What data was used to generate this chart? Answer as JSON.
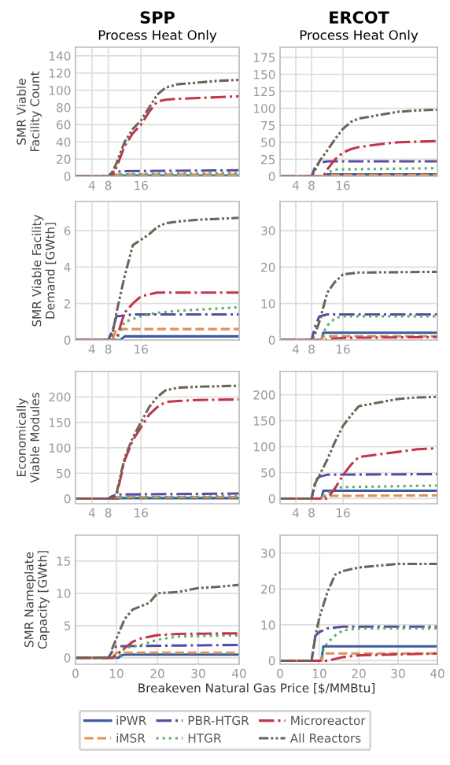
{
  "chart_data": [
    {
      "type": "line",
      "title": "SPP",
      "subtitle": "Process Heat Only",
      "ylabel": "SMR Viable\nFacility Count",
      "legend": "bottom",
      "xlim": [
        0,
        40
      ],
      "xticks": [
        4,
        8,
        16
      ],
      "ylim": [
        0,
        150
      ],
      "yticks": [
        0,
        20,
        40,
        60,
        80,
        100,
        120,
        140
      ],
      "grid": true,
      "series": [
        {
          "name": "iPWR",
          "color": "#3b5b9b",
          "line_style": "solid",
          "x": [
            0,
            10,
            11,
            40
          ],
          "values": [
            0,
            0,
            1,
            1
          ]
        },
        {
          "name": "iMSR",
          "color": "#e0905a",
          "line_style": "dashed",
          "x": [
            0,
            9,
            10,
            40
          ],
          "values": [
            0,
            0,
            2,
            2
          ]
        },
        {
          "name": "PBR-HTGR",
          "color": "#5a4c9c",
          "line_style": "dashdot",
          "x": [
            0,
            8,
            9,
            12,
            40
          ],
          "values": [
            0,
            0,
            5,
            6,
            7
          ]
        },
        {
          "name": "HTGR",
          "color": "#5aae6a",
          "line_style": "dotted",
          "x": [
            0,
            9,
            10,
            20,
            40
          ],
          "values": [
            0,
            0,
            2,
            3,
            4
          ]
        },
        {
          "name": "Microreactor",
          "color": "#c0364c",
          "line_style": "dashdot",
          "x": [
            0,
            9,
            10,
            12,
            14,
            16,
            18,
            20,
            22,
            25,
            30,
            35,
            40
          ],
          "values": [
            0,
            0,
            10,
            35,
            50,
            60,
            75,
            87,
            89,
            90,
            91,
            92,
            93
          ]
        },
        {
          "name": "All Reactors",
          "color": "#6e6455",
          "line_style": "dashdotdot",
          "x": [
            0,
            8.5,
            10,
            12,
            14,
            16,
            18,
            20,
            22,
            25,
            30,
            35,
            40
          ],
          "values": [
            0,
            0,
            15,
            40,
            55,
            65,
            80,
            95,
            103,
            107,
            109,
            111,
            112
          ]
        }
      ]
    },
    {
      "type": "line",
      "title": "ERCOT",
      "subtitle": "Process Heat Only",
      "xlim": [
        0,
        40
      ],
      "xticks": [
        4,
        8,
        16
      ],
      "ylim": [
        0,
        190
      ],
      "yticks": [
        0,
        25,
        50,
        75,
        100,
        125,
        150,
        175
      ],
      "grid": true,
      "series": [
        {
          "color": "#3b5b9b",
          "line_style": "solid",
          "x": [
            0,
            11,
            12,
            40
          ],
          "values": [
            0,
            0,
            3,
            3
          ]
        },
        {
          "color": "#e0905a",
          "line_style": "dashed",
          "x": [
            0,
            11,
            12,
            40
          ],
          "values": [
            0,
            0,
            2,
            2
          ]
        },
        {
          "color": "#5a4c9c",
          "line_style": "dashdot",
          "x": [
            0,
            8,
            9,
            10,
            12,
            40
          ],
          "values": [
            0,
            0,
            15,
            20,
            22,
            22
          ]
        },
        {
          "color": "#5aae6a",
          "line_style": "dotted",
          "x": [
            0,
            11,
            12,
            14,
            40
          ],
          "values": [
            0,
            0,
            5,
            10,
            12
          ]
        },
        {
          "color": "#c0364c",
          "line_style": "dashdot",
          "x": [
            0,
            11,
            12,
            14,
            16,
            18,
            20,
            25,
            30,
            40
          ],
          "values": [
            0,
            0,
            10,
            25,
            35,
            40,
            43,
            47,
            50,
            52
          ]
        },
        {
          "color": "#6e6455",
          "line_style": "dashdotdot",
          "x": [
            0,
            8,
            9,
            10,
            12,
            14,
            16,
            18,
            20,
            25,
            30,
            35,
            40
          ],
          "values": [
            0,
            0,
            10,
            22,
            38,
            55,
            70,
            80,
            85,
            90,
            95,
            97,
            98
          ]
        }
      ]
    },
    {
      "type": "line",
      "ylabel": "SMR Viable Facility\nDemand [GWth]",
      "xlim": [
        0,
        40
      ],
      "xticks": [
        4,
        8,
        16
      ],
      "ylim": [
        0,
        7.6
      ],
      "yticks": [
        0,
        2,
        4,
        6
      ],
      "grid": true,
      "series": [
        {
          "color": "#3b5b9b",
          "line_style": "solid",
          "x": [
            0,
            11,
            12,
            40
          ],
          "values": [
            0,
            0,
            0.2,
            0.2
          ]
        },
        {
          "color": "#e0905a",
          "line_style": "dashed",
          "x": [
            0,
            9,
            10,
            40
          ],
          "values": [
            0,
            0,
            0.6,
            0.6
          ]
        },
        {
          "color": "#5a4c9c",
          "line_style": "dashdot",
          "x": [
            0,
            8,
            9,
            10,
            14,
            40
          ],
          "values": [
            0,
            0,
            0.5,
            1.3,
            1.4,
            1.4
          ]
        },
        {
          "color": "#5aae6a",
          "line_style": "dotted",
          "x": [
            0,
            10,
            11,
            12,
            16,
            20,
            25,
            40
          ],
          "values": [
            0,
            0,
            0.5,
            1.0,
            1.3,
            1.5,
            1.6,
            1.8
          ]
        },
        {
          "color": "#c0364c",
          "line_style": "dashdot",
          "x": [
            0,
            10,
            11,
            12,
            14,
            16,
            20,
            40
          ],
          "values": [
            0,
            0,
            0.8,
            1.5,
            2.0,
            2.4,
            2.6,
            2.6
          ]
        },
        {
          "color": "#6e6455",
          "line_style": "dashdotdot",
          "x": [
            0,
            8.5,
            9,
            10,
            12,
            14,
            16,
            18,
            20,
            22,
            25,
            30,
            40
          ],
          "values": [
            0,
            0,
            0.3,
            1.5,
            3.5,
            5.2,
            5.5,
            5.8,
            6.2,
            6.4,
            6.5,
            6.6,
            6.7
          ]
        }
      ]
    },
    {
      "type": "line",
      "xlim": [
        0,
        40
      ],
      "xticks": [
        4,
        8,
        16
      ],
      "ylim": [
        0,
        38
      ],
      "yticks": [
        0,
        10,
        20,
        30
      ],
      "grid": true,
      "series": [
        {
          "color": "#3b5b9b",
          "line_style": "solid",
          "x": [
            0,
            10.5,
            11,
            40
          ],
          "values": [
            0,
            0,
            2,
            2
          ]
        },
        {
          "color": "#e0905a",
          "line_style": "dashed",
          "x": [
            0,
            10.5,
            11,
            40
          ],
          "values": [
            0,
            0,
            1,
            1
          ]
        },
        {
          "color": "#5a4c9c",
          "line_style": "dashdot",
          "x": [
            0,
            8,
            9,
            10,
            12,
            40
          ],
          "values": [
            0,
            0,
            4,
            6.5,
            7,
            7
          ]
        },
        {
          "color": "#5aae6a",
          "line_style": "dotted",
          "x": [
            0,
            10.5,
            11,
            12,
            14,
            16,
            40
          ],
          "values": [
            0,
            0,
            2,
            4,
            6,
            6.5,
            6.5
          ]
        },
        {
          "color": "#c0364c",
          "line_style": "dashdot",
          "x": [
            0,
            11.5,
            12,
            16,
            40
          ],
          "values": [
            0,
            0,
            0.2,
            0.6,
            0.8
          ]
        },
        {
          "color": "#6e6455",
          "line_style": "dashdotdot",
          "x": [
            0,
            8,
            9,
            10,
            12,
            14,
            16,
            20,
            40
          ],
          "values": [
            0,
            0,
            2,
            5,
            13,
            16,
            18,
            18.5,
            18.7
          ]
        }
      ]
    },
    {
      "type": "line",
      "ylabel": "Economically\nViable Modules",
      "xlim": [
        0,
        40
      ],
      "xticks": [
        4,
        8,
        16
      ],
      "ylim": [
        -10,
        250
      ],
      "yticks": [
        0,
        50,
        100,
        150,
        200
      ],
      "grid": true,
      "series": [
        {
          "color": "#3b5b9b",
          "line_style": "solid",
          "x": [
            0,
            10,
            11,
            40
          ],
          "values": [
            0,
            0,
            1,
            1
          ]
        },
        {
          "color": "#e0905a",
          "line_style": "dashed",
          "x": [
            0,
            9,
            10,
            40
          ],
          "values": [
            0,
            0,
            3,
            3
          ]
        },
        {
          "color": "#5a4c9c",
          "line_style": "dashdot",
          "x": [
            0,
            8,
            9,
            10,
            40
          ],
          "values": [
            0,
            0,
            5,
            8,
            10
          ]
        },
        {
          "color": "#5aae6a",
          "line_style": "dotted",
          "x": [
            0,
            9,
            10,
            40
          ],
          "values": [
            0,
            0,
            2,
            5
          ]
        },
        {
          "color": "#c0364c",
          "line_style": "dashdot",
          "x": [
            0,
            9,
            10,
            12,
            14,
            16,
            18,
            20,
            22,
            25,
            30,
            40
          ],
          "values": [
            0,
            0,
            5,
            75,
            115,
            140,
            165,
            180,
            190,
            192,
            194,
            195
          ]
        },
        {
          "color": "#6e6455",
          "line_style": "dashdotdot",
          "x": [
            0,
            9,
            10,
            12,
            14,
            16,
            18,
            20,
            22,
            25,
            30,
            40
          ],
          "values": [
            0,
            0,
            10,
            80,
            120,
            150,
            180,
            200,
            213,
            218,
            220,
            222
          ]
        }
      ]
    },
    {
      "type": "line",
      "xlim": [
        0,
        40
      ],
      "xticks": [
        4,
        8,
        16
      ],
      "ylim": [
        -10,
        245
      ],
      "yticks": [
        0,
        50,
        100,
        150,
        200
      ],
      "grid": true,
      "series": [
        {
          "color": "#3b5b9b",
          "line_style": "solid",
          "x": [
            0,
            10.5,
            11,
            40
          ],
          "values": [
            0,
            0,
            15,
            15
          ]
        },
        {
          "color": "#e0905a",
          "line_style": "dashed",
          "x": [
            0,
            10.5,
            11,
            40
          ],
          "values": [
            0,
            0,
            5,
            6
          ]
        },
        {
          "color": "#5a4c9c",
          "line_style": "dashdot",
          "x": [
            0,
            8,
            9,
            10,
            12,
            40
          ],
          "values": [
            0,
            0,
            35,
            42,
            46,
            47
          ]
        },
        {
          "color": "#5aae6a",
          "line_style": "dotted",
          "x": [
            0,
            11,
            12,
            14,
            16,
            40
          ],
          "values": [
            0,
            0,
            10,
            20,
            22,
            25
          ]
        },
        {
          "color": "#c0364c",
          "line_style": "dashdot",
          "x": [
            0,
            12,
            14,
            16,
            18,
            20,
            25,
            30,
            35,
            40
          ],
          "values": [
            0,
            0,
            20,
            45,
            65,
            80,
            85,
            90,
            95,
            97
          ]
        },
        {
          "color": "#6e6455",
          "line_style": "dashdotdot",
          "x": [
            0,
            8,
            9,
            10,
            12,
            14,
            16,
            18,
            20,
            25,
            30,
            35,
            40
          ],
          "values": [
            0,
            0,
            30,
            45,
            75,
            110,
            140,
            160,
            178,
            185,
            192,
            195,
            196
          ]
        }
      ]
    },
    {
      "type": "line",
      "ylabel": "SMR Nameplate\nCapacity [GWth]",
      "xlabel": "Breakeven Natural Gas Price [$/MMBtu]",
      "xlim": [
        0,
        40
      ],
      "xticks": [
        0,
        10,
        20,
        30,
        40
      ],
      "ylim": [
        -1,
        19
      ],
      "yticks": [
        0,
        5,
        10,
        15
      ],
      "grid": true,
      "series": [
        {
          "color": "#3b5b9b",
          "line_style": "solid",
          "x": [
            0,
            10.5,
            11,
            12,
            40
          ],
          "values": [
            0,
            0,
            0.3,
            0.5,
            0.5
          ]
        },
        {
          "color": "#e0905a",
          "line_style": "dashed",
          "x": [
            0,
            9,
            10,
            40
          ],
          "values": [
            0,
            0,
            0.8,
            0.8
          ]
        },
        {
          "color": "#5a4c9c",
          "line_style": "dashdot",
          "x": [
            0,
            8,
            9,
            10,
            40
          ],
          "values": [
            0,
            0,
            1,
            1.8,
            2.0
          ]
        },
        {
          "color": "#5aae6a",
          "line_style": "dotted",
          "x": [
            0,
            10,
            11,
            12,
            16,
            20,
            25,
            40
          ],
          "values": [
            0,
            0,
            0.5,
            1.5,
            2,
            2.8,
            3.3,
            3.5
          ]
        },
        {
          "color": "#c0364c",
          "line_style": "dashdot",
          "x": [
            0,
            9,
            10,
            12,
            14,
            16,
            20,
            25,
            40
          ],
          "values": [
            0,
            0,
            0.5,
            1.5,
            2.5,
            3,
            3.5,
            3.7,
            3.8
          ]
        },
        {
          "color": "#6e6455",
          "line_style": "dashdotdot",
          "x": [
            0,
            8.5,
            9,
            10,
            12,
            14,
            16,
            18,
            20,
            25,
            30,
            35,
            40
          ],
          "values": [
            0,
            0,
            1.5,
            3,
            6,
            7.5,
            8,
            8.5,
            10,
            10.2,
            10.8,
            11,
            11.3
          ]
        }
      ]
    },
    {
      "type": "line",
      "xlim": [
        0,
        40
      ],
      "xticks": [
        0,
        10,
        20,
        30,
        40
      ],
      "ylim": [
        -1,
        35
      ],
      "yticks": [
        0,
        10,
        20,
        30
      ],
      "grid": true,
      "series": [
        {
          "color": "#3b5b9b",
          "line_style": "solid",
          "x": [
            0,
            10.5,
            11,
            40
          ],
          "values": [
            0,
            0,
            4,
            4
          ]
        },
        {
          "color": "#e0905a",
          "line_style": "dashed",
          "x": [
            0,
            10.5,
            11,
            40
          ],
          "values": [
            0,
            0,
            2,
            2
          ]
        },
        {
          "color": "#5a4c9c",
          "line_style": "dashdot",
          "x": [
            0,
            8,
            9,
            10,
            12,
            16,
            40
          ],
          "values": [
            0,
            0,
            7,
            8,
            9,
            9.5,
            9.5
          ]
        },
        {
          "color": "#5aae6a",
          "line_style": "dotted",
          "x": [
            0,
            10.5,
            11,
            12,
            14,
            16,
            20,
            40
          ],
          "values": [
            0,
            0,
            3,
            5,
            7,
            8.5,
            9,
            9
          ]
        },
        {
          "color": "#c0364c",
          "line_style": "dashdot",
          "x": [
            0,
            12,
            16,
            20,
            40
          ],
          "values": [
            0,
            0,
            1,
            1.5,
            2
          ]
        },
        {
          "color": "#6e6455",
          "line_style": "dashdotdot",
          "x": [
            0,
            8,
            9,
            10,
            12,
            14,
            16,
            20,
            25,
            30,
            40
          ],
          "values": [
            0,
            0,
            7,
            12,
            19,
            24,
            25,
            26,
            26.5,
            27,
            27
          ]
        }
      ]
    }
  ]
}
